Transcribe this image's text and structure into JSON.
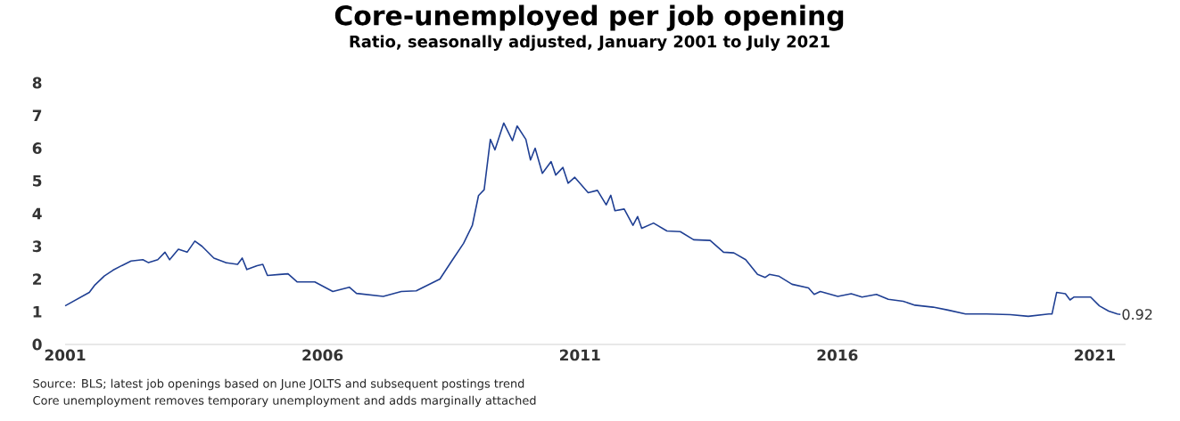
{
  "chart_data": {
    "type": "line",
    "title": "Core-unemployed per job opening",
    "subtitle": "Ratio, seasonally adjusted, January 2001 to July 2021",
    "x": [
      2001.0,
      2001.47,
      2001.58,
      2001.76,
      2001.93,
      2002.1,
      2002.28,
      2002.51,
      2002.62,
      2002.8,
      2002.94,
      2003.03,
      2003.2,
      2003.37,
      2003.52,
      2003.66,
      2003.89,
      2004.12,
      2004.35,
      2004.44,
      2004.53,
      2004.73,
      2004.84,
      2004.93,
      2005.16,
      2005.33,
      2005.51,
      2005.85,
      2006.2,
      2006.52,
      2006.66,
      2007.18,
      2007.53,
      2007.82,
      2008.28,
      2008.51,
      2008.74,
      2008.91,
      2009.03,
      2009.14,
      2009.26,
      2009.35,
      2009.52,
      2009.69,
      2009.78,
      2009.95,
      2010.04,
      2010.13,
      2010.27,
      2010.44,
      2010.53,
      2010.67,
      2010.77,
      2010.9,
      2011.16,
      2011.34,
      2011.51,
      2011.6,
      2011.68,
      2011.86,
      2012.03,
      2012.12,
      2012.2,
      2012.43,
      2012.69,
      2012.95,
      2013.21,
      2013.53,
      2013.79,
      2013.99,
      2014.22,
      2014.45,
      2014.6,
      2014.68,
      2014.86,
      2015.12,
      2015.44,
      2015.55,
      2015.67,
      2016.01,
      2016.27,
      2016.48,
      2016.76,
      2016.99,
      2017.28,
      2017.51,
      2017.86,
      2018.15,
      2018.49,
      2018.9,
      2019.36,
      2019.71,
      2020.11,
      2020.17,
      2020.26,
      2020.43,
      2020.52,
      2020.6,
      2020.92,
      2021.09,
      2021.27,
      2021.44,
      2021.5
    ],
    "values": [
      1.18,
      1.59,
      1.82,
      2.09,
      2.27,
      2.41,
      2.55,
      2.59,
      2.5,
      2.59,
      2.82,
      2.59,
      2.91,
      2.82,
      3.16,
      3.0,
      2.64,
      2.5,
      2.45,
      2.64,
      2.29,
      2.41,
      2.45,
      2.11,
      2.14,
      2.16,
      1.91,
      1.91,
      1.62,
      1.75,
      1.56,
      1.47,
      1.62,
      1.64,
      2.0,
      2.55,
      3.09,
      3.64,
      4.55,
      4.73,
      6.27,
      5.95,
      6.77,
      6.23,
      6.68,
      6.27,
      5.64,
      6.0,
      5.23,
      5.59,
      5.18,
      5.41,
      4.93,
      5.11,
      4.64,
      4.71,
      4.27,
      4.56,
      4.09,
      4.14,
      3.64,
      3.91,
      3.55,
      3.71,
      3.47,
      3.45,
      3.2,
      3.18,
      2.82,
      2.8,
      2.59,
      2.14,
      2.05,
      2.14,
      2.09,
      1.84,
      1.73,
      1.53,
      1.62,
      1.47,
      1.55,
      1.45,
      1.53,
      1.38,
      1.32,
      1.2,
      1.14,
      1.05,
      0.93,
      0.93,
      0.91,
      0.86,
      0.93,
      0.93,
      1.59,
      1.55,
      1.36,
      1.45,
      1.45,
      1.18,
      1.02,
      0.93,
      0.92
    ],
    "color": "#1f3f93",
    "xlim": [
      2001,
      2021.6
    ],
    "ylim": [
      0,
      8
    ],
    "xticks": [
      2001,
      2006,
      2011,
      2016,
      2021
    ],
    "yticks": [
      0,
      1,
      2,
      3,
      4,
      5,
      6,
      7,
      8
    ],
    "grid": false,
    "annotations": [
      {
        "text": "0.92",
        "x": 2021.5,
        "y": 0.92
      },
      "Source: BLS; latest job openings based on June JOLTS and subsequent postings trend",
      "Core unemployment removes temporary unemployment and adds marginally attached"
    ]
  }
}
